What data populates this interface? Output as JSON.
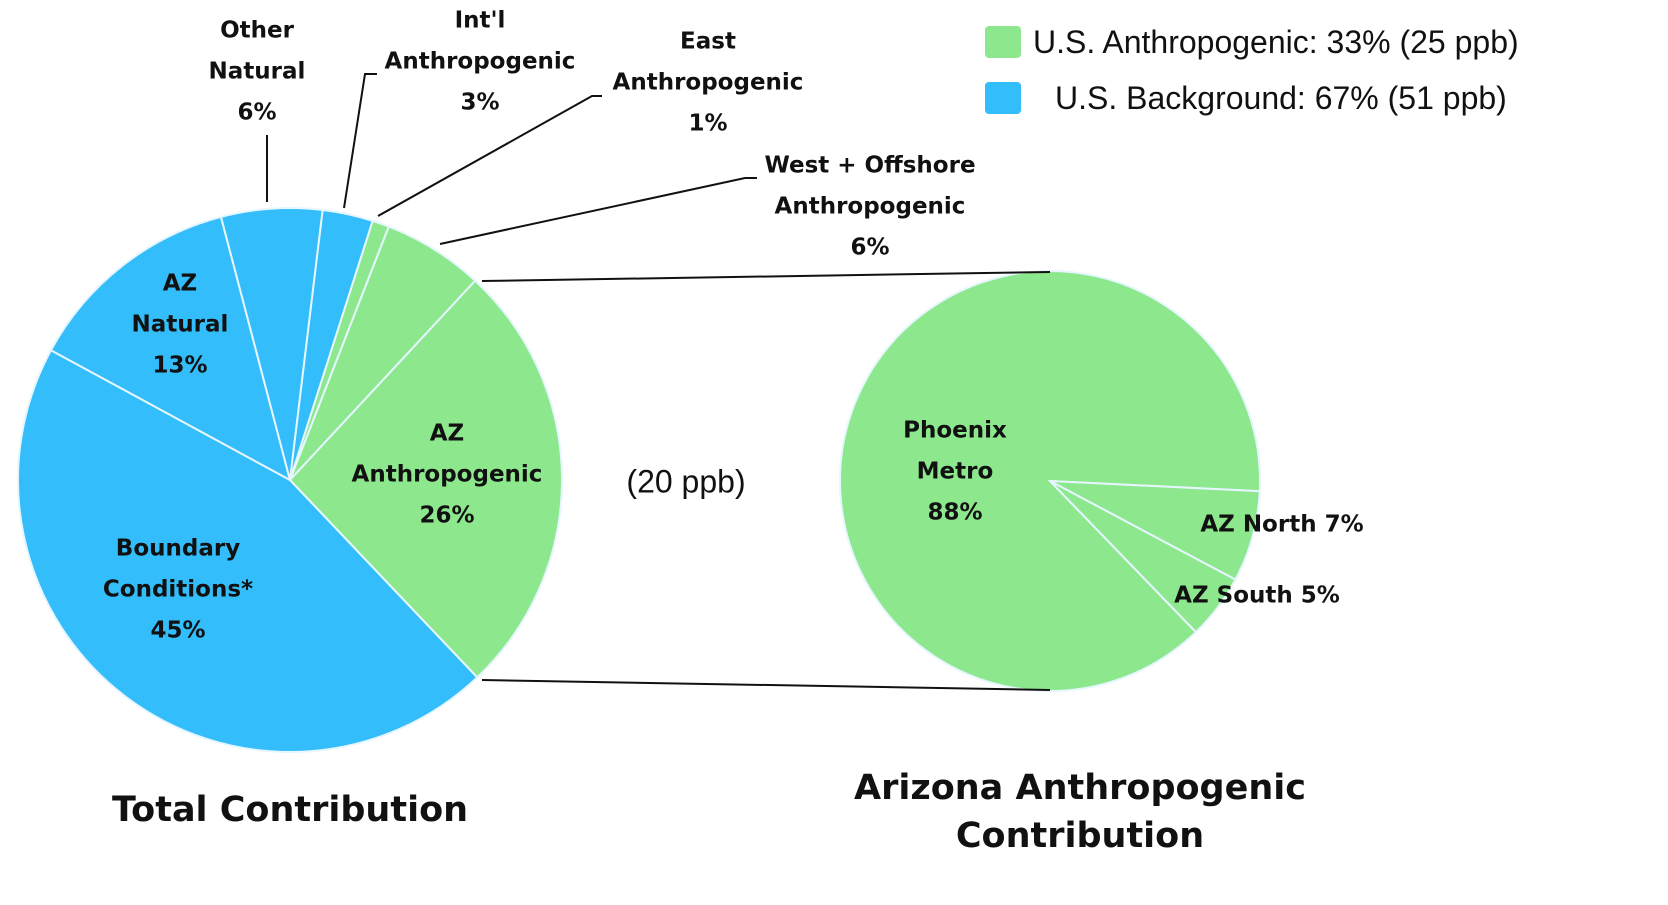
{
  "chart_data": [
    {
      "type": "pie",
      "title": "Total Contribution",
      "categories": [
        "Boundary Conditions*",
        "AZ Natural",
        "Other Natural",
        "Int'l Anthropogenic",
        "East Anthropogenic",
        "West + Offshore Anthropogenic",
        "AZ Anthropogenic"
      ],
      "values": [
        45,
        13,
        6,
        3,
        1,
        6,
        26
      ],
      "value_labels": [
        "45%",
        "13%",
        "6%",
        "3%",
        "1%",
        "6%",
        "26%"
      ],
      "colors": [
        "#33bdfa",
        "#33bdfa",
        "#33bdfa",
        "#33bdfa",
        "#8de88d",
        "#8de88d",
        "#8de88d"
      ],
      "annotation": "(20 ppb)",
      "legend": [
        {
          "label": "U.S. Anthropogenic: 33% (25 ppb)",
          "color": "#8de88d"
        },
        {
          "label": "U.S. Background: 67% (51 ppb)",
          "color": "#33bdfa"
        }
      ]
    },
    {
      "type": "pie",
      "title": "Arizona Anthropogenic Contribution",
      "categories": [
        "Phoenix Metro",
        "AZ North",
        "AZ South"
      ],
      "values": [
        88,
        7,
        5
      ],
      "value_labels": [
        "88%",
        "7%",
        "5%"
      ],
      "colors": [
        "#8de88d",
        "#8de88d",
        "#8de88d"
      ]
    }
  ]
}
